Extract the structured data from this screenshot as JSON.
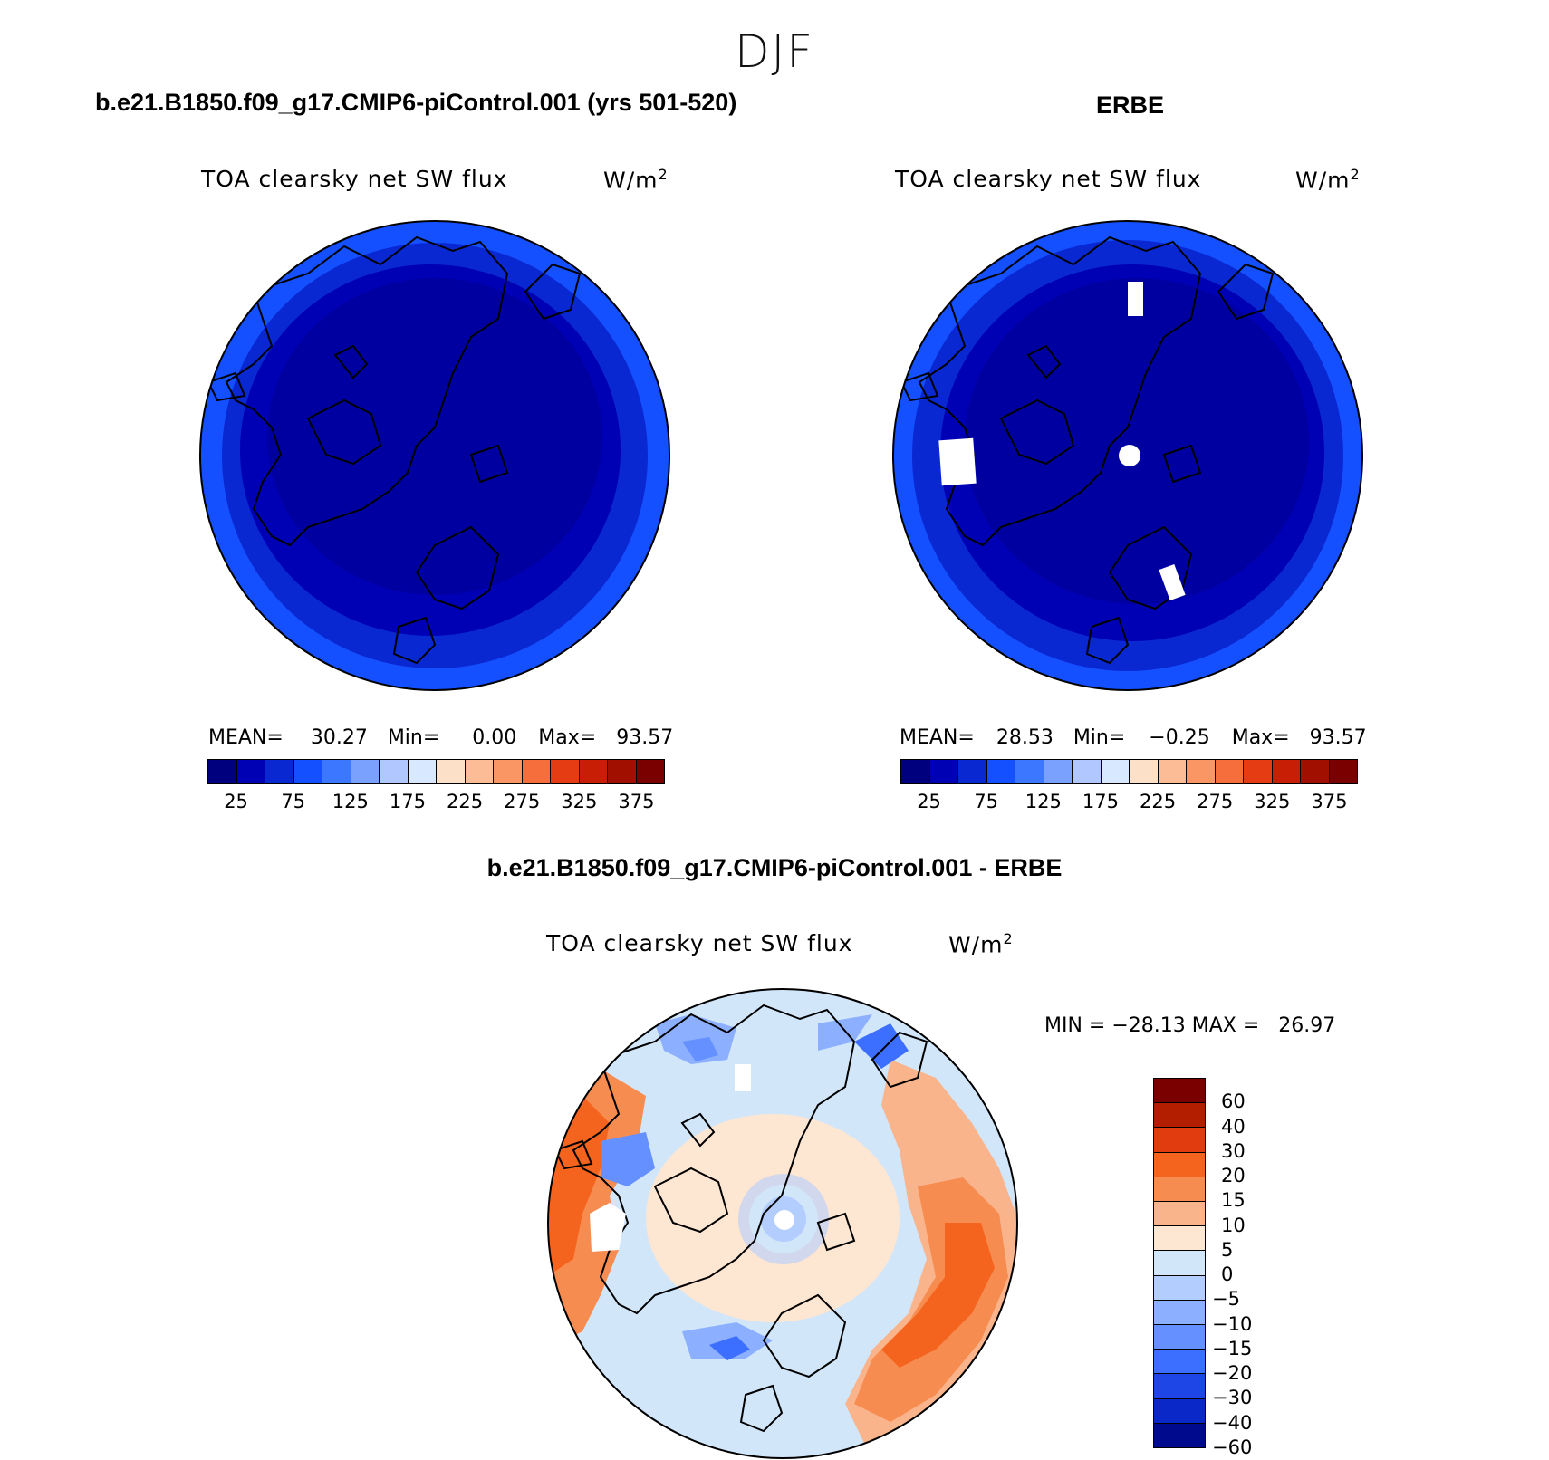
{
  "season": "DJF",
  "panels": [
    {
      "case": "b.e21.B1850.f09_g17.CMIP6-piControl.001 (yrs 501-520)",
      "variable": "TOA clearsky net SW flux",
      "units_base": "W/m",
      "units_exp": "2",
      "stats": {
        "mean_label": "MEAN=",
        "mean": "30.27",
        "min_label": "Min=",
        "min": "0.00",
        "max_label": "Max=",
        "max": "93.57"
      }
    },
    {
      "case": "ERBE",
      "variable": "TOA clearsky net SW flux",
      "units_base": "W/m",
      "units_exp": "2",
      "stats": {
        "mean_label": "MEAN=",
        "mean": "28.53",
        "min_label": "Min=",
        "min": "−0.25",
        "max_label": "Max=",
        "max": "93.57"
      }
    }
  ],
  "diff": {
    "case": "b.e21.B1850.f09_g17.CMIP6-piControl.001 - ERBE",
    "variable": "TOA clearsky net SW flux",
    "units_base": "W/m",
    "units_exp": "2",
    "minmax": "MIN = −28.13 MAX =   26.97"
  },
  "colorbar_abs": {
    "colors": [
      "#00007f",
      "#0000b4",
      "#0a28d2",
      "#1450ff",
      "#3c78ff",
      "#7ba1ff",
      "#b0c8ff",
      "#d8e8ff",
      "#fde0c8",
      "#fcbc96",
      "#fa9664",
      "#f56e3c",
      "#e63c14",
      "#c81e05",
      "#a00f00",
      "#7a0000"
    ],
    "labels": [
      "25",
      "75",
      "125",
      "175",
      "225",
      "275",
      "325",
      "375"
    ]
  },
  "colorbar_diff": {
    "colors": [
      "#7a0000",
      "#b41e00",
      "#e13c0f",
      "#f5641e",
      "#f78c50",
      "#f9b48c",
      "#fde6d2",
      "#d2e6fa",
      "#b4cdff",
      "#8cafff",
      "#6491ff",
      "#3c6eff",
      "#1e46e6",
      "#0a28c8",
      "#000a8c"
    ],
    "labels": [
      "60",
      "40",
      "30",
      "20",
      "15",
      "10",
      "5",
      "0",
      "−5",
      "−10",
      "−15",
      "−20",
      "−30",
      "−40",
      "−60"
    ]
  }
}
